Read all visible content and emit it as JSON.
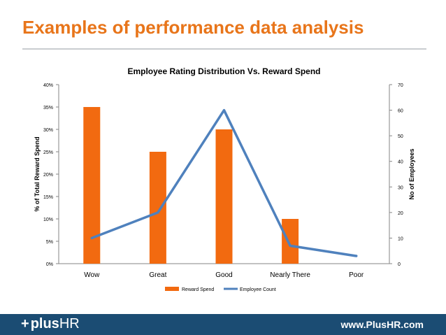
{
  "slide": {
    "title": "Examples of performance data analysis"
  },
  "footer": {
    "logo_mark": "+",
    "logo_plus": "plus",
    "logo_hr": "HR",
    "url": "www.PlusHR.com",
    "background": "#1b4c73"
  },
  "chart_data": {
    "type": "bar",
    "title": "Employee Rating Distribution Vs. Reward Spend",
    "categories": [
      "Wow",
      "Great",
      "Good",
      "Nearly There",
      "Poor"
    ],
    "series": [
      {
        "name": "Reward Spend",
        "type": "bar",
        "axis": "left",
        "color": "#f26a10",
        "values": [
          35,
          25,
          30,
          10,
          0
        ]
      },
      {
        "name": "Employee Count",
        "type": "line",
        "axis": "right",
        "color": "#4f81bd",
        "values": [
          10,
          20,
          60,
          7,
          3
        ]
      }
    ],
    "ylabel": "% of Total Reward Spend",
    "y2label": "No of Employees",
    "ylim": [
      0,
      40
    ],
    "y2lim": [
      0,
      70
    ],
    "yticks": [
      "0%",
      "5%",
      "10%",
      "15%",
      "20%",
      "25%",
      "30%",
      "35%",
      "40%"
    ],
    "y2ticks": [
      "0",
      "10",
      "20",
      "30",
      "40",
      "50",
      "60",
      "70"
    ],
    "grid": false,
    "legend_position": "bottom"
  }
}
